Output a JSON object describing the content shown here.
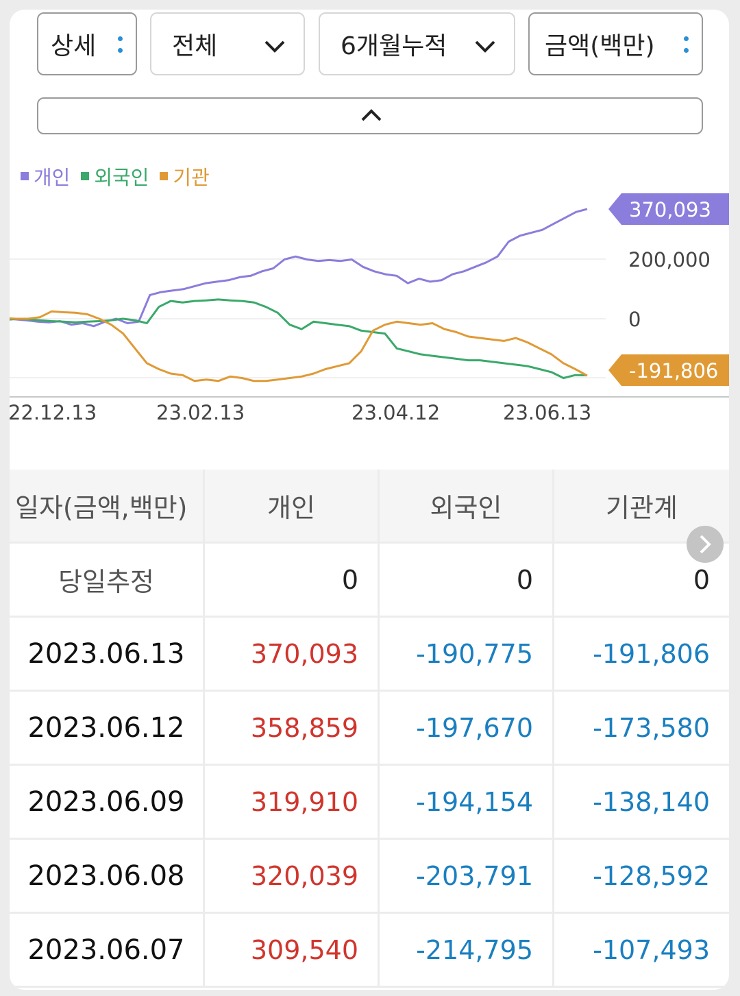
{
  "controls": {
    "detail": {
      "label": "상세",
      "icon": "kebab-icon"
    },
    "scope": {
      "label": "전체",
      "icon": "chevron-down-icon"
    },
    "period": {
      "label": "6개월누적",
      "icon": "chevron-down-icon"
    },
    "unit": {
      "label": "금액(백만)",
      "icon": "kebab-icon"
    },
    "collapse_icon": "chevron-up-icon"
  },
  "legend": [
    {
      "label": "개인",
      "color": "#8a7ddc"
    },
    {
      "label": "외국인",
      "color": "#3aa96b"
    },
    {
      "label": "기관",
      "color": "#e09a35"
    }
  ],
  "chart_data": {
    "type": "line",
    "x_ticks": [
      "22.12.13",
      "23.02.13",
      "23.04.12",
      "23.06.13"
    ],
    "y_ticks": [
      "200,000",
      "0"
    ],
    "ylim": [
      -200000,
      370093
    ],
    "end_labels": {
      "individual": "370,093",
      "institution": "-191,806"
    },
    "series": [
      {
        "name": "개인",
        "color": "#8a7ddc",
        "values": [
          0,
          -2000,
          -5000,
          -10000,
          -12000,
          -8000,
          -20000,
          -15000,
          -25000,
          -10000,
          0,
          -15000,
          -10000,
          80000,
          90000,
          95000,
          100000,
          110000,
          120000,
          125000,
          130000,
          140000,
          145000,
          160000,
          170000,
          200000,
          210000,
          200000,
          195000,
          198000,
          195000,
          200000,
          175000,
          160000,
          150000,
          145000,
          120000,
          135000,
          125000,
          130000,
          150000,
          160000,
          175000,
          190000,
          210000,
          260000,
          280000,
          290000,
          300000,
          320000,
          340000,
          360000,
          370093
        ]
      },
      {
        "name": "외국인",
        "color": "#3aa96b",
        "values": [
          -5000,
          0,
          -2000,
          -5000,
          -8000,
          -10000,
          -12000,
          -10000,
          -8000,
          -5000,
          0,
          -5000,
          -15000,
          40000,
          60000,
          55000,
          60000,
          62000,
          65000,
          62000,
          60000,
          55000,
          40000,
          20000,
          -20000,
          -35000,
          -10000,
          -15000,
          -20000,
          -25000,
          -40000,
          -45000,
          -50000,
          -100000,
          -110000,
          -120000,
          -125000,
          -130000,
          -135000,
          -140000,
          -140000,
          -145000,
          -150000,
          -155000,
          -160000,
          -170000,
          -180000,
          -200000,
          -190000,
          -190775
        ]
      },
      {
        "name": "기관",
        "color": "#e09a35",
        "values": [
          2000,
          0,
          0,
          5000,
          25000,
          22000,
          20000,
          15000,
          0,
          -20000,
          -50000,
          -100000,
          -150000,
          -170000,
          -185000,
          -190000,
          -210000,
          -205000,
          -210000,
          -195000,
          -200000,
          -210000,
          -210000,
          -205000,
          -200000,
          -195000,
          -185000,
          -170000,
          -160000,
          -150000,
          -110000,
          -40000,
          -20000,
          -10000,
          -15000,
          -20000,
          -15000,
          -35000,
          -45000,
          -60000,
          -65000,
          -70000,
          -75000,
          -65000,
          -80000,
          -100000,
          -120000,
          -150000,
          -170000,
          -191806
        ]
      }
    ]
  },
  "table": {
    "headers": [
      "일자(금액,백만)",
      "개인",
      "외국인",
      "기관계"
    ],
    "rows": [
      {
        "date": "당일추정",
        "individual": "0",
        "foreign": "0",
        "institution": "0"
      },
      {
        "date": "2023.06.13",
        "individual": "370,093",
        "foreign": "-190,775",
        "institution": "-191,806"
      },
      {
        "date": "2023.06.12",
        "individual": "358,859",
        "foreign": "-197,670",
        "institution": "-173,580"
      },
      {
        "date": "2023.06.09",
        "individual": "319,910",
        "foreign": "-194,154",
        "institution": "-138,140"
      },
      {
        "date": "2023.06.08",
        "individual": "320,039",
        "foreign": "-203,791",
        "institution": "-128,592"
      },
      {
        "date": "2023.06.07",
        "individual": "309,540",
        "foreign": "-214,795",
        "institution": "-107,493"
      }
    ]
  }
}
